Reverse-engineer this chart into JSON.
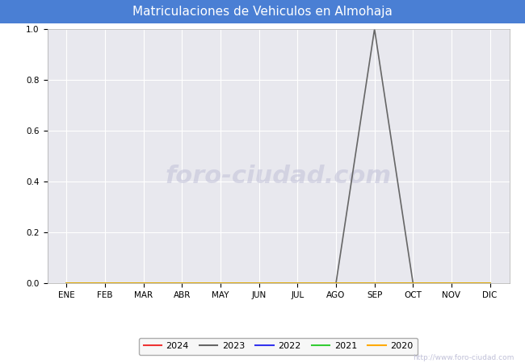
{
  "title": "Matriculaciones de Vehiculos en Almohaja",
  "title_bg_color": "#4a7fd4",
  "title_text_color": "#ffffff",
  "plot_bg_color": "#e8e8ee",
  "fig_bg_color": "#ffffff",
  "months": [
    "ENE",
    "FEB",
    "MAR",
    "ABR",
    "MAY",
    "JUN",
    "JUL",
    "AGO",
    "SEP",
    "OCT",
    "NOV",
    "DIC"
  ],
  "ylim": [
    0.0,
    1.0
  ],
  "yticks": [
    0.0,
    0.2,
    0.4,
    0.6,
    0.8,
    1.0
  ],
  "series": [
    {
      "label": "2024",
      "color": "#ee3333",
      "data": [
        0,
        0,
        0,
        0,
        0,
        0,
        0,
        0,
        0,
        0,
        0,
        0
      ]
    },
    {
      "label": "2023",
      "color": "#666666",
      "data": [
        0,
        0,
        0,
        0,
        0,
        0,
        0,
        0,
        1.0,
        0,
        0,
        0
      ]
    },
    {
      "label": "2022",
      "color": "#3333ee",
      "data": [
        0,
        0,
        0,
        0,
        0,
        0,
        0,
        0,
        0,
        0,
        0,
        0
      ]
    },
    {
      "label": "2021",
      "color": "#33cc33",
      "data": [
        0,
        0,
        0,
        0,
        0,
        0,
        0,
        0,
        0,
        0,
        0,
        0
      ]
    },
    {
      "label": "2020",
      "color": "#ffaa00",
      "data": [
        0,
        0,
        0,
        0,
        0,
        0,
        0,
        0,
        0,
        0,
        0,
        0
      ]
    }
  ],
  "watermark_url": "http://www.foro-ciudad.com",
  "watermark_text": "foro-ciudad.com",
  "watermark_color": "#c0c0d8",
  "grid_color": "#ffffff",
  "legend_border_color": "#999999",
  "legend_bg_color": "#f5f5f5",
  "title_fontsize": 11,
  "tick_fontsize": 7.5
}
